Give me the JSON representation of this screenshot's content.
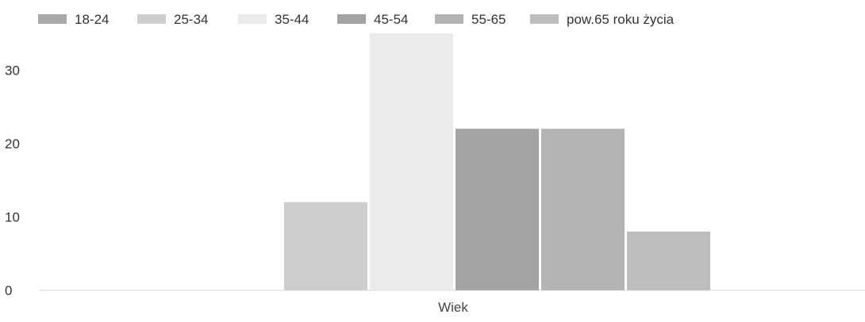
{
  "chart_data": {
    "type": "bar",
    "categories": [
      "Wiek"
    ],
    "xlabel": "Wiek",
    "ylabel": "",
    "ylim": [
      0,
      35
    ],
    "yticks": [
      0,
      10,
      20,
      30
    ],
    "grid": false,
    "legend_position": "top-left",
    "series": [
      {
        "name": "18-24",
        "values": [
          0
        ],
        "color": "#a9a9a9"
      },
      {
        "name": "25-34",
        "values": [
          12
        ],
        "color": "#cdcdcd"
      },
      {
        "name": "35-44",
        "values": [
          35
        ],
        "color": "#ebebeb"
      },
      {
        "name": "45-54",
        "values": [
          22
        ],
        "color": "#a3a3a3"
      },
      {
        "name": "55-65",
        "values": [
          22
        ],
        "color": "#b4b4b4"
      },
      {
        "name": "pow.65 roku życia",
        "values": [
          8
        ],
        "color": "#bdbdbd"
      }
    ]
  }
}
